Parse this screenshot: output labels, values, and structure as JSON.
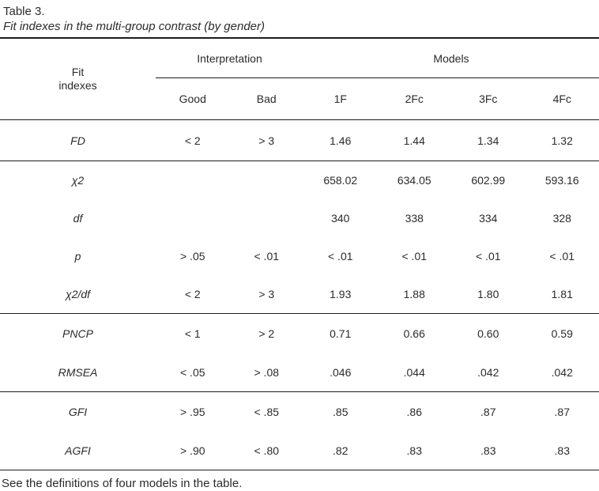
{
  "table": {
    "number": "Table 3.",
    "caption": "Fit indexes in the multi-group contrast (by gender)",
    "header": {
      "fit_indexes": "Fit indexes",
      "interpretation": "Interpretation",
      "models": "Models",
      "columns": [
        "Good",
        "Bad",
        "1F",
        "2Fc",
        "3Fc",
        "4Fc"
      ]
    },
    "groups": [
      {
        "rows": [
          {
            "label": "FD",
            "values": [
              "< 2",
              "> 3",
              "1.46",
              "1.44",
              "1.34",
              "1.32"
            ]
          }
        ]
      },
      {
        "rows": [
          {
            "label": "χ2",
            "values": [
              "",
              "",
              "658.02",
              "634.05",
              "602.99",
              "593.16"
            ]
          },
          {
            "label": "df",
            "values": [
              "",
              "",
              "340",
              "338",
              "334",
              "328"
            ]
          },
          {
            "label": "p",
            "values": [
              "> .05",
              "< .01",
              "< .01",
              "< .01",
              "< .01",
              "< .01"
            ]
          },
          {
            "label": "χ2/df",
            "values": [
              "< 2",
              "> 3",
              "1.93",
              "1.88",
              "1.80",
              "1.81"
            ]
          }
        ]
      },
      {
        "rows": [
          {
            "label": "PNCP",
            "values": [
              "< 1",
              "> 2",
              "0.71",
              "0.66",
              "0.60",
              "0.59"
            ]
          },
          {
            "label": "RMSEA",
            "values": [
              "< .05",
              "> .08",
              ".046",
              ".044",
              ".042",
              ".042"
            ]
          }
        ]
      },
      {
        "rows": [
          {
            "label": "GFI",
            "values": [
              "> .95",
              "< .85",
              ".85",
              ".86",
              ".87",
              ".87"
            ]
          },
          {
            "label": "AGFI",
            "values": [
              "> .90",
              "< .80",
              ".82",
              ".83",
              ".83",
              ".83"
            ]
          }
        ]
      }
    ],
    "footnote": "See the definitions of four models in the table.",
    "colors": {
      "text": "#2b2b2b",
      "rule": "#1c1c1c",
      "background": "#ffffff"
    }
  }
}
